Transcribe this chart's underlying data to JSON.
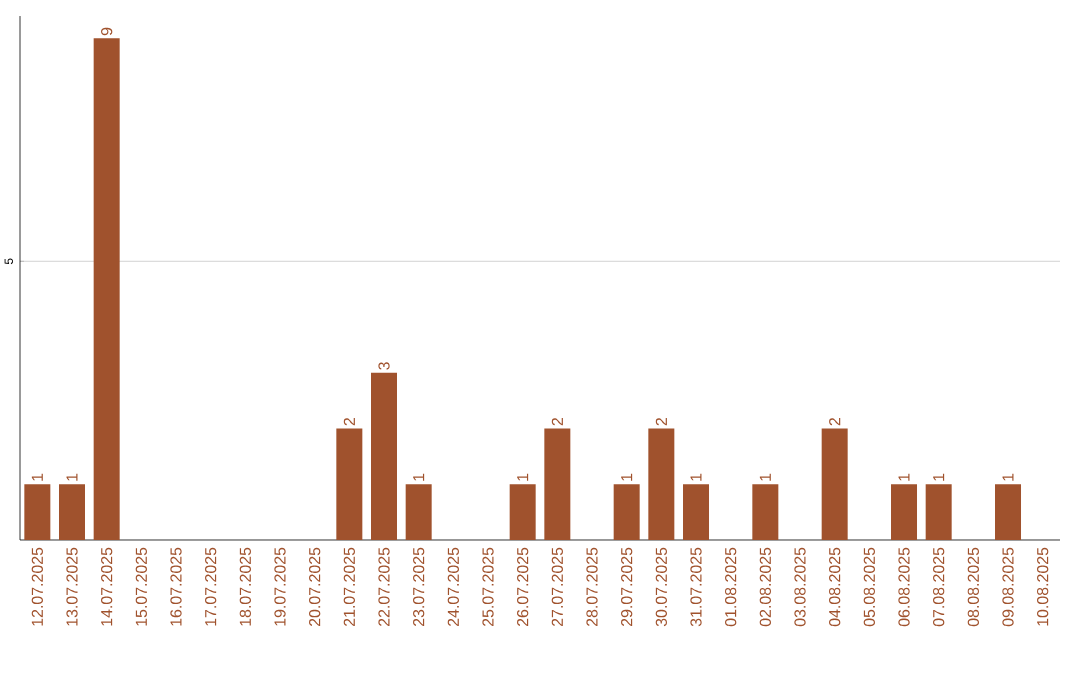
{
  "chart_data": {
    "type": "bar",
    "categories": [
      "12.07.2025",
      "13.07.2025",
      "14.07.2025",
      "15.07.2025",
      "16.07.2025",
      "17.07.2025",
      "18.07.2025",
      "19.07.2025",
      "20.07.2025",
      "21.07.2025",
      "22.07.2025",
      "23.07.2025",
      "24.07.2025",
      "25.07.2025",
      "26.07.2025",
      "27.07.2025",
      "28.07.2025",
      "29.07.2025",
      "30.07.2025",
      "31.07.2025",
      "01.08.2025",
      "02.08.2025",
      "03.08.2025",
      "04.08.2025",
      "05.08.2025",
      "06.08.2025",
      "07.08.2025",
      "08.08.2025",
      "09.08.2025",
      "10.08.2025"
    ],
    "values": [
      1,
      1,
      9,
      0,
      0,
      0,
      0,
      0,
      0,
      2,
      3,
      1,
      0,
      0,
      1,
      2,
      0,
      1,
      2,
      1,
      0,
      1,
      0,
      2,
      0,
      1,
      1,
      0,
      1,
      0
    ],
    "value_labels": [
      "1",
      "1",
      "9",
      null,
      null,
      null,
      null,
      null,
      null,
      "2",
      "3",
      "1",
      null,
      null,
      "1",
      "2",
      null,
      "1",
      "2",
      "1",
      null,
      "1",
      null,
      "2",
      null,
      "1",
      "1",
      null,
      "1",
      null
    ],
    "color": "#a0522d",
    "ylim": [
      0,
      9.4
    ],
    "yticks": [
      5
    ],
    "grid": "y"
  }
}
